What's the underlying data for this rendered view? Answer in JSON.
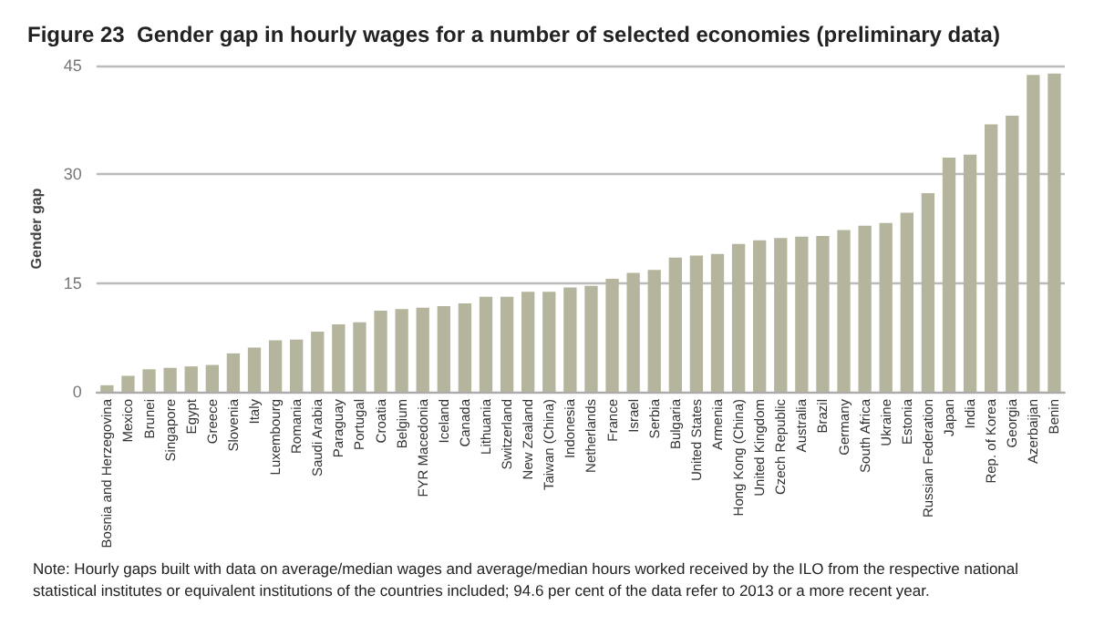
{
  "chart_data": {
    "type": "bar",
    "title": "Figure 23  Gender gap in hourly wages for a number of selected economies (preliminary data)",
    "ylabel": "Gender gap",
    "categories": [
      "Bosnia and Herzegovina",
      "Mexico",
      "Brunei",
      "Singapore",
      "Egypt",
      "Greece",
      "Slovenia",
      "Italy",
      "Luxembourg",
      "Romania",
      "Saudi Arabia",
      "Paraguay",
      "Portugal",
      "Croatia",
      "Belgium",
      "FYR Macedonia",
      "Iceland",
      "Canada",
      "Lithuania",
      "Switzerland",
      "New Zealand",
      "Taiwan (China)",
      "Indonesia",
      "Netherlands",
      "France",
      "Israel",
      "Serbia",
      "Bulgaria",
      "United States",
      "Armenia",
      "Hong Kong (China)",
      "United Kingdom",
      "Czech Republic",
      "Australia",
      "Brazil",
      "Germany",
      "South Africa",
      "Ukraine",
      "Estonia",
      "Russian Federation",
      "Japan",
      "India",
      "Rep. of Korea",
      "Georgia",
      "Azerbaijan",
      "Benin"
    ],
    "values": [
      0.9,
      2.2,
      3.1,
      3.3,
      3.5,
      3.7,
      5.3,
      6.1,
      7.1,
      7.2,
      8.3,
      9.3,
      9.6,
      11.2,
      11.4,
      11.6,
      11.8,
      12.2,
      13.1,
      13.1,
      13.8,
      13.8,
      14.4,
      14.6,
      15.6,
      16.4,
      16.8,
      18.5,
      18.8,
      19.0,
      20.4,
      20.9,
      21.2,
      21.4,
      21.5,
      22.3,
      22.9,
      23.3,
      24.7,
      27.4,
      32.3,
      32.7,
      36.9,
      38.1,
      43.7,
      43.9
    ],
    "color": "#b5b59e",
    "ylim": [
      0,
      45
    ],
    "yticks": [
      0,
      15,
      30,
      45
    ],
    "grid": "y",
    "annotations": [
      "Note: Hourly gaps built with data on average/median wages and average/median hours worked received by the ILO from the respective national statistical institutes or equivalent institutions of the countries included; 94.6 per cent of the data refer to 2013 or a more recent year."
    ]
  }
}
